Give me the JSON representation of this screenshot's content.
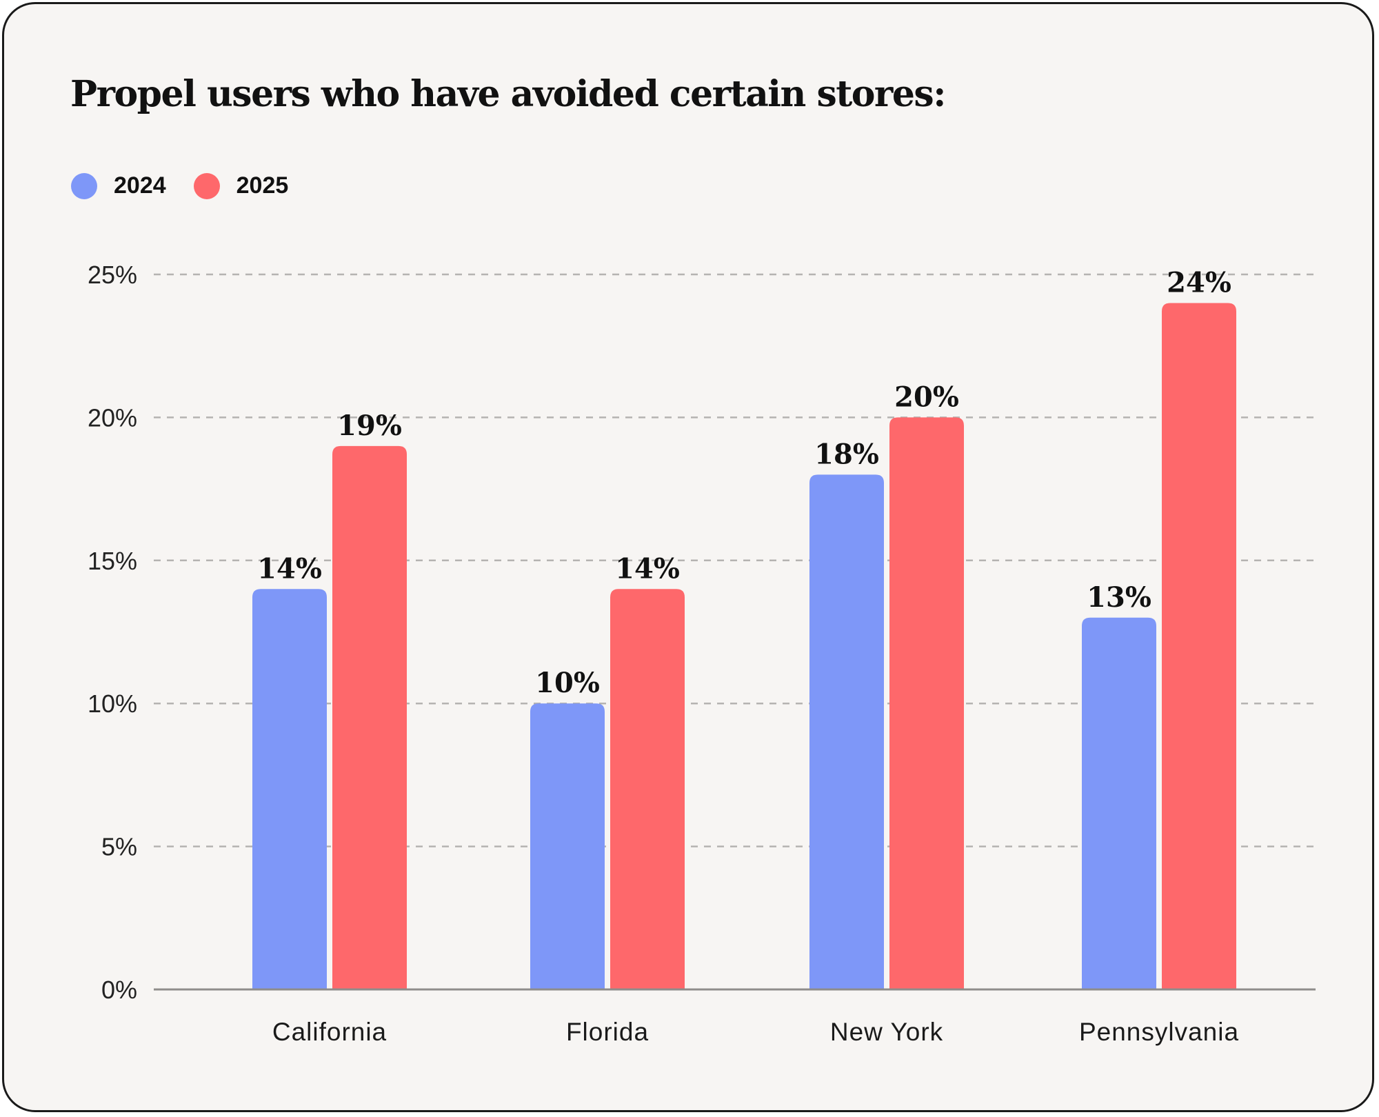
{
  "chart_data": {
    "type": "bar",
    "title": "Propel users who have avoided certain stores:",
    "categories": [
      "California",
      "Florida",
      "New York",
      "Pennsylvania"
    ],
    "series": [
      {
        "name": "2024",
        "color": "#7e97f8",
        "values": [
          14,
          10,
          18,
          13
        ],
        "labels": [
          "14%",
          "10%",
          "18%",
          "13%"
        ]
      },
      {
        "name": "2025",
        "color": "#fe686b",
        "values": [
          19,
          14,
          20,
          24
        ],
        "labels": [
          "19%",
          "14%",
          "20%",
          "24%"
        ]
      }
    ],
    "yticks": [
      0,
      5,
      10,
      15,
      20,
      25
    ],
    "ytick_labels": [
      "0%",
      "5%",
      "10%",
      "15%",
      "20%",
      "25%"
    ],
    "ylim": [
      0,
      25
    ],
    "xlabel": "",
    "ylabel": "",
    "grid": true,
    "legend": "top-left"
  }
}
